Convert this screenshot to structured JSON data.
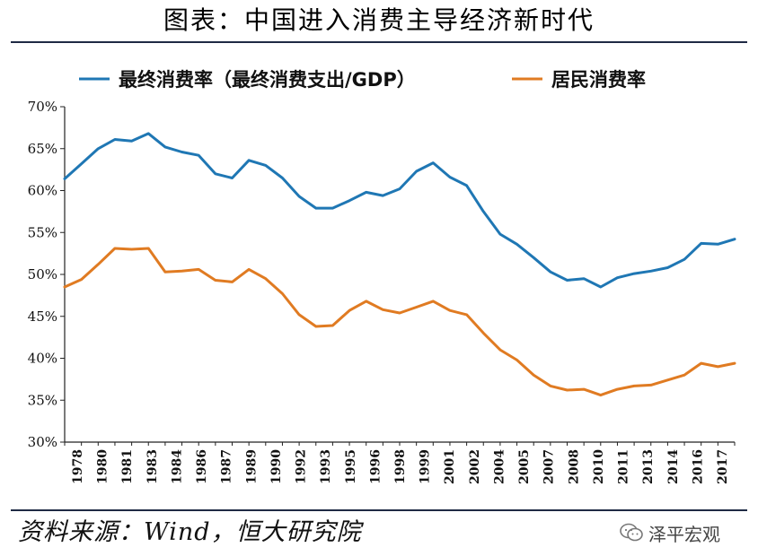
{
  "title": "图表：中国进入消费主导经济新时代",
  "source": "资料来源：Wind，恒大研究院",
  "brand": {
    "name": "泽平宏观",
    "icon": "wechat-icon"
  },
  "chart_data": {
    "type": "line",
    "title": "",
    "xlabel": "",
    "ylabel": "",
    "ylim": [
      30,
      70
    ],
    "yticks": [
      "30%",
      "35%",
      "40%",
      "45%",
      "50%",
      "55%",
      "60%",
      "65%",
      "70%"
    ],
    "xtick_labels": [
      "1978",
      "1980",
      "1981",
      "1983",
      "1984",
      "1986",
      "1987",
      "1989",
      "1990",
      "1992",
      "1993",
      "1995",
      "1996",
      "1998",
      "1999",
      "2001",
      "2002",
      "2004",
      "2005",
      "2007",
      "2008",
      "2010",
      "2011",
      "2013",
      "2014",
      "2016",
      "2017"
    ],
    "grid": false,
    "legend": "top",
    "x": [
      1978,
      1979,
      1980,
      1981,
      1982,
      1983,
      1984,
      1985,
      1986,
      1987,
      1988,
      1989,
      1990,
      1991,
      1992,
      1993,
      1994,
      1995,
      1996,
      1997,
      1998,
      1999,
      2000,
      2001,
      2002,
      2003,
      2004,
      2005,
      2006,
      2007,
      2008,
      2009,
      2010,
      2011,
      2012,
      2013,
      2014,
      2015,
      2016,
      2017,
      2018
    ],
    "series": [
      {
        "name": "最终消费率（最终消费支出/GDP）",
        "color": "#1f77b4",
        "values": [
          61.4,
          63.2,
          65.0,
          66.1,
          65.9,
          66.8,
          65.2,
          64.6,
          64.2,
          62.0,
          61.5,
          63.6,
          63.0,
          61.5,
          59.3,
          57.9,
          57.9,
          58.8,
          59.8,
          59.4,
          60.2,
          62.3,
          63.3,
          61.6,
          60.6,
          57.5,
          54.8,
          53.6,
          52.0,
          50.3,
          49.3,
          49.5,
          48.5,
          49.6,
          50.1,
          50.4,
          50.8,
          51.8,
          53.7,
          53.6,
          54.2
        ]
      },
      {
        "name": "居民消费率",
        "color": "#e07b22",
        "values": [
          48.5,
          49.4,
          51.2,
          53.1,
          53.0,
          53.1,
          50.3,
          50.4,
          50.6,
          49.3,
          49.1,
          50.6,
          49.5,
          47.7,
          45.2,
          43.8,
          43.9,
          45.7,
          46.8,
          45.8,
          45.4,
          46.1,
          46.8,
          45.7,
          45.2,
          43.0,
          41.0,
          39.8,
          38.0,
          36.7,
          36.2,
          36.3,
          35.6,
          36.3,
          36.7,
          36.8,
          37.4,
          38.0,
          39.4,
          39.0,
          39.4
        ]
      }
    ]
  }
}
